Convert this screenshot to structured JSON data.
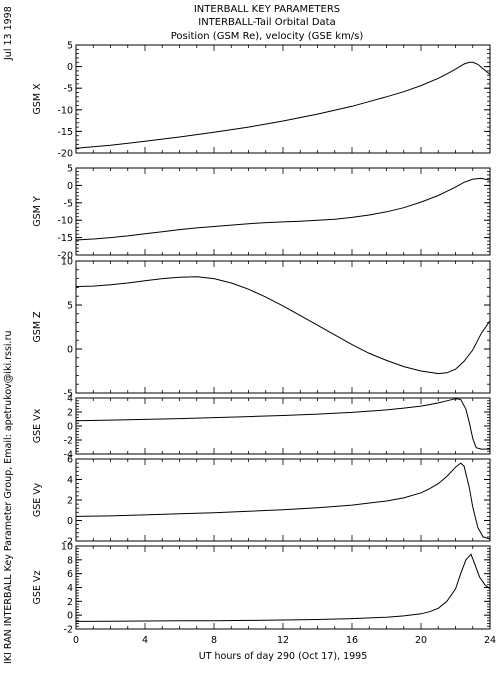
{
  "header": {
    "date": "Jul 13 1998",
    "footer_credit": "IKI RAN INTERBALL Key Parameter Group, Email: apetrukov@iki.rssi.ru"
  },
  "chart_data": {
    "title": "INTERBALL KEY PARAMETERS",
    "subtitle": "INTERBALL-Tail Orbital Data",
    "subtitle2": "Position (GSM Re), velocity (GSE km/s)",
    "xlabel": "UT hours of day 290 (Oct 17), 1995",
    "xlim": [
      0,
      24
    ],
    "xticks": [
      0,
      4,
      8,
      12,
      16,
      20,
      24
    ],
    "panels": [
      {
        "type": "line",
        "ylabel": "GSM X",
        "ylim": [
          -20,
          5
        ],
        "yticks": [
          5,
          0,
          -5,
          -10,
          -15,
          -20
        ],
        "x": [
          0,
          2,
          4,
          6,
          8,
          10,
          12,
          14,
          16,
          18,
          19,
          20,
          21,
          21.5,
          22,
          22.5,
          22.8,
          23,
          23.3,
          23.6,
          24
        ],
        "y": [
          -18.9,
          -18.2,
          -17.3,
          -16.3,
          -15.2,
          -14,
          -12.6,
          -11,
          -9.2,
          -7,
          -5.8,
          -4.4,
          -2.7,
          -1.7,
          -0.6,
          0.6,
          1.0,
          1.0,
          0.5,
          -0.5,
          -1.8
        ]
      },
      {
        "type": "line",
        "ylabel": "GSM Y",
        "ylim": [
          -20,
          5
        ],
        "yticks": [
          5,
          0,
          -5,
          -10,
          -15,
          -20
        ],
        "x": [
          0,
          1,
          2,
          3,
          4,
          5,
          6,
          7,
          8,
          9,
          10,
          11,
          12,
          13,
          14,
          15,
          16,
          17,
          18,
          19,
          20,
          21,
          21.5,
          22,
          22.5,
          23,
          23.5,
          24
        ],
        "y": [
          -15.7,
          -15.4,
          -15.0,
          -14.5,
          -13.9,
          -13.3,
          -12.7,
          -12.2,
          -11.8,
          -11.4,
          -11.0,
          -10.7,
          -10.5,
          -10.3,
          -10.0,
          -9.7,
          -9.2,
          -8.5,
          -7.6,
          -6.4,
          -4.8,
          -2.9,
          -1.7,
          -0.5,
          0.9,
          1.8,
          2.0,
          1.5
        ]
      },
      {
        "type": "line",
        "ylabel": "GSM Z",
        "ylim": [
          -5,
          10
        ],
        "yticks": [
          10,
          5,
          0,
          -5
        ],
        "x": [
          0,
          1,
          2,
          3,
          4,
          5,
          6,
          7,
          8,
          9,
          10,
          11,
          12,
          13,
          14,
          15,
          16,
          17,
          18,
          19,
          20,
          21,
          21.5,
          22,
          22.5,
          23,
          23.5,
          24
        ],
        "y": [
          7.1,
          7.15,
          7.3,
          7.5,
          7.75,
          8.0,
          8.15,
          8.2,
          8.0,
          7.5,
          6.8,
          5.9,
          4.9,
          3.8,
          2.7,
          1.6,
          0.5,
          -0.5,
          -1.3,
          -2.0,
          -2.5,
          -2.8,
          -2.7,
          -2.3,
          -1.4,
          -0.1,
          1.8,
          3.2
        ]
      },
      {
        "type": "line",
        "ylabel": "GSE Vx",
        "ylim": [
          -4,
          4
        ],
        "yticks": [
          4,
          2,
          0,
          -2,
          -4
        ],
        "x": [
          0,
          2,
          4,
          6,
          8,
          10,
          12,
          14,
          16,
          18,
          19,
          20,
          20.5,
          21,
          21.5,
          22,
          22.3,
          22.6,
          22.8,
          23,
          23.2,
          23.5,
          24
        ],
        "y": [
          0.75,
          0.85,
          0.95,
          1.05,
          1.2,
          1.35,
          1.5,
          1.7,
          1.95,
          2.3,
          2.55,
          2.85,
          3.05,
          3.3,
          3.6,
          3.9,
          3.8,
          2.4,
          0.5,
          -1.8,
          -3.1,
          -3.3,
          -3.3
        ]
      },
      {
        "type": "line",
        "ylabel": "GSE Vy",
        "ylim": [
          -2,
          6
        ],
        "yticks": [
          6,
          4,
          2,
          0,
          -2
        ],
        "x": [
          0,
          2,
          4,
          6,
          8,
          10,
          12,
          14,
          16,
          18,
          19,
          20,
          20.5,
          21,
          21.5,
          22,
          22.3,
          22.5,
          22.8,
          23,
          23.3,
          23.6,
          24
        ],
        "y": [
          0.4,
          0.45,
          0.55,
          0.65,
          0.75,
          0.9,
          1.05,
          1.25,
          1.5,
          1.9,
          2.2,
          2.7,
          3.1,
          3.6,
          4.3,
          5.2,
          5.6,
          5.3,
          3.2,
          1.3,
          -0.7,
          -1.6,
          -1.8
        ]
      },
      {
        "type": "line",
        "ylabel": "GSE Vz",
        "ylim": [
          -2,
          10
        ],
        "yticks": [
          10,
          8,
          6,
          4,
          2,
          0,
          -2
        ],
        "x": [
          0,
          2,
          4,
          6,
          8,
          10,
          12,
          14,
          16,
          18,
          19,
          20,
          20.5,
          21,
          21.5,
          22,
          22.3,
          22.6,
          22.9,
          23.1,
          23.4,
          23.7,
          24
        ],
        "y": [
          -0.9,
          -0.88,
          -0.85,
          -0.82,
          -0.8,
          -0.75,
          -0.7,
          -0.62,
          -0.5,
          -0.3,
          -0.1,
          0.2,
          0.5,
          1.0,
          2.0,
          3.8,
          6.0,
          8.0,
          8.8,
          7.5,
          5.5,
          4.4,
          3.8
        ]
      }
    ]
  }
}
